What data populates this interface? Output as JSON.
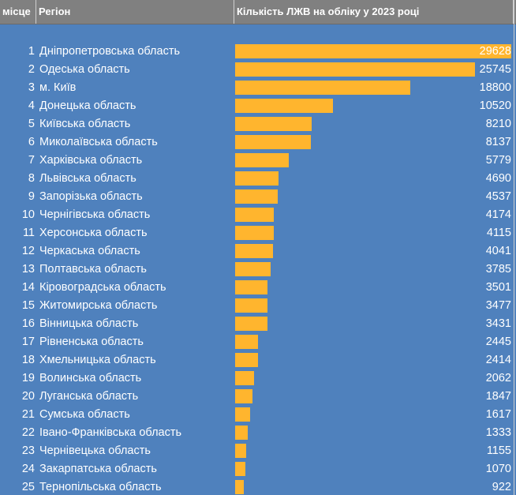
{
  "table": {
    "header": {
      "rank": "місце",
      "region": "Регіон",
      "value": "Кількість ЛЖВ на обліку  у 2023 році"
    }
  },
  "chart_data": {
    "type": "bar",
    "orientation": "horizontal",
    "xlim": [
      0,
      29628
    ],
    "color": "#ffb52e",
    "background": "#4f81bd",
    "rows": [
      {
        "rank": "1",
        "region": "Дніпропетровська область",
        "value": 29628
      },
      {
        "rank": "2",
        "region": "Одеська область",
        "value": 25745
      },
      {
        "rank": "3",
        "region": "м. Київ",
        "value": 18800
      },
      {
        "rank": "4",
        "region": "Донецька область",
        "value": 10520
      },
      {
        "rank": "5",
        "region": "Київська область",
        "value": 8210
      },
      {
        "rank": "6",
        "region": "Миколаївська область",
        "value": 8137
      },
      {
        "rank": "7",
        "region": "Харківська область",
        "value": 5779
      },
      {
        "rank": "8",
        "region": "Львівська область",
        "value": 4690
      },
      {
        "rank": "9",
        "region": "Запорізька область",
        "value": 4537
      },
      {
        "rank": "10",
        "region": "Чернігівська область",
        "value": 4174
      },
      {
        "rank": "11",
        "region": "Херсонська область",
        "value": 4115
      },
      {
        "rank": "12",
        "region": "Черкаська область",
        "value": 4041
      },
      {
        "rank": "13",
        "region": "Полтавська область",
        "value": 3785
      },
      {
        "rank": "14",
        "region": "Кіровоградська область",
        "value": 3501
      },
      {
        "rank": "15",
        "region": "Житомирська область",
        "value": 3477
      },
      {
        "rank": "16",
        "region": "Вінницька область",
        "value": 3431
      },
      {
        "rank": "17",
        "region": "Рівненська область",
        "value": 2445
      },
      {
        "rank": "18",
        "region": "Хмельницька область",
        "value": 2414
      },
      {
        "rank": "19",
        "region": "Волинська область",
        "value": 2062
      },
      {
        "rank": "20",
        "region": "Луганська область",
        "value": 1847
      },
      {
        "rank": "21",
        "region": "Сумська область",
        "value": 1617
      },
      {
        "rank": "22",
        "region": "Івано-Франківська область",
        "value": 1333
      },
      {
        "rank": "23",
        "region": "Чернівецька область",
        "value": 1155
      },
      {
        "rank": "24",
        "region": "Закарпатська область",
        "value": 1070
      },
      {
        "rank": "25",
        "region": "Тернопільська область",
        "value": 922
      }
    ]
  }
}
